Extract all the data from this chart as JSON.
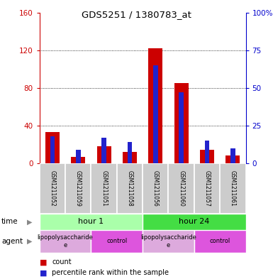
{
  "title": "GDS5251 / 1380783_at",
  "samples": [
    "GSM1211052",
    "GSM1211059",
    "GSM1211051",
    "GSM1211058",
    "GSM1211056",
    "GSM1211060",
    "GSM1211057",
    "GSM1211061"
  ],
  "counts": [
    33,
    7,
    18,
    12,
    122,
    85,
    14,
    8
  ],
  "percentiles": [
    18,
    9,
    17,
    14,
    65,
    47,
    15,
    10
  ],
  "left_ylim": [
    0,
    160
  ],
  "right_ylim": [
    0,
    100
  ],
  "left_yticks": [
    0,
    40,
    80,
    120,
    160
  ],
  "right_yticks": [
    0,
    25,
    50,
    75,
    100
  ],
  "right_yticklabels": [
    "0",
    "25",
    "50",
    "75",
    "100%"
  ],
  "left_yticklabels": [
    "0",
    "40",
    "80",
    "120",
    "160"
  ],
  "time_groups": [
    {
      "label": "hour 1",
      "start": 0,
      "end": 4,
      "color": "#aaffaa"
    },
    {
      "label": "hour 24",
      "start": 4,
      "end": 8,
      "color": "#44dd44"
    }
  ],
  "agent_groups": [
    {
      "label": "lipopolysaccharide\ne",
      "start": 0,
      "end": 2,
      "color": "#ddaadd"
    },
    {
      "label": "control",
      "start": 2,
      "end": 4,
      "color": "#dd55dd"
    },
    {
      "label": "lipopolysaccharide\ne",
      "start": 4,
      "end": 6,
      "color": "#ddaadd"
    },
    {
      "label": "control",
      "start": 6,
      "end": 8,
      "color": "#dd55dd"
    }
  ],
  "bar_color_count": "#cc0000",
  "bar_color_pct": "#2222cc",
  "sample_cell_color": "#cccccc",
  "bar_width": 0.55,
  "blue_bar_width": 0.18,
  "bg_color": "#ffffff",
  "plot_bg_color": "#ffffff",
  "count_label": "count",
  "pct_label": "percentile rank within the sample",
  "left_axis_color": "#cc0000",
  "right_axis_color": "#0000cc",
  "figsize": [
    3.85,
    3.93
  ],
  "dpi": 100
}
